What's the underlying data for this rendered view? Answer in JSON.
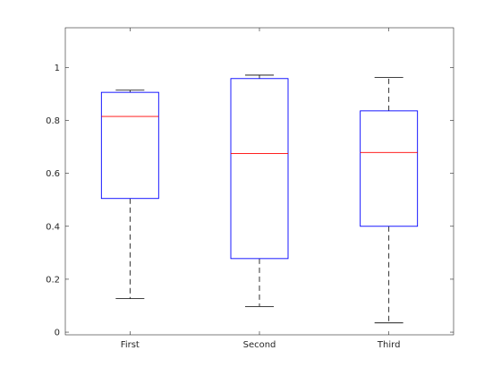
{
  "chart_data": {
    "type": "box",
    "categories": [
      "First",
      "Second",
      "Third"
    ],
    "boxes": [
      {
        "name": "First",
        "min": 0.127,
        "q1": 0.505,
        "median": 0.815,
        "q3": 0.906,
        "max": 0.914
      },
      {
        "name": "Second",
        "min": 0.097,
        "q1": 0.278,
        "median": 0.675,
        "q3": 0.958,
        "max": 0.971
      },
      {
        "name": "Third",
        "min": 0.035,
        "q1": 0.4,
        "median": 0.679,
        "q3": 0.836,
        "max": 0.962
      }
    ],
    "title": "",
    "xlabel": "",
    "ylabel": "",
    "ylim": [
      -0.01,
      1.15
    ],
    "y_ticks": [
      0,
      0.2,
      0.4,
      0.6,
      0.8,
      1
    ],
    "y_tick_labels": [
      "0",
      "0.2",
      "0.4",
      "0.6",
      "0.8",
      "1"
    ],
    "grid": false,
    "colors": {
      "box": "#0000ff",
      "median": "#ff0000",
      "whisker": "#000000",
      "axes": "#262626"
    }
  }
}
